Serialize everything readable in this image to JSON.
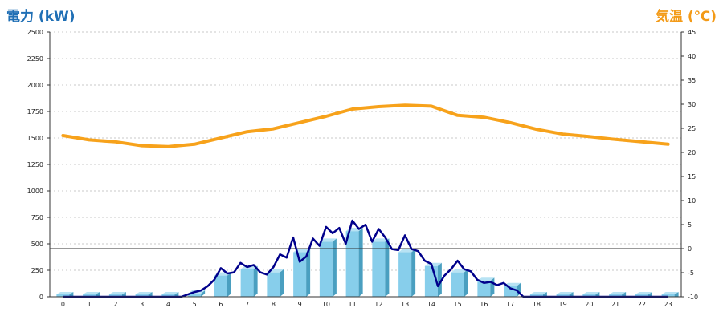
{
  "chart_data": {
    "type": "bar",
    "title": "",
    "y_left_label": "電力 (kW)",
    "y_right_label": "気温 (℃)",
    "categories": [
      "0",
      "1",
      "2",
      "3",
      "4",
      "5",
      "6",
      "7",
      "8",
      "9",
      "10",
      "11",
      "12",
      "13",
      "14",
      "15",
      "16",
      "17",
      "18",
      "19",
      "20",
      "21",
      "22",
      "23"
    ],
    "y_left_ticks": [
      0,
      250,
      500,
      750,
      1000,
      1250,
      1500,
      1750,
      2000,
      2250,
      2500
    ],
    "y_right_ticks": [
      -10,
      -5,
      0,
      5,
      10,
      15,
      20,
      25,
      30,
      35,
      40,
      45
    ],
    "ylim_left": [
      0,
      2500
    ],
    "ylim_right": [
      -10,
      45
    ],
    "grid": true,
    "reference_line_right": 0,
    "colors": {
      "bars": "#87ceeb",
      "bar_side": "#4a9fc0",
      "power_line": "#00008b",
      "temp_line": "#f7a21b",
      "left_title": "#1f6fb5",
      "right_title": "#f39a17"
    },
    "series": [
      {
        "type": "bar",
        "axis": "left",
        "values": [
          0,
          0,
          0,
          0,
          0,
          30,
          200,
          260,
          230,
          420,
          520,
          620,
          520,
          420,
          290,
          230,
          150,
          100,
          0,
          0,
          0,
          0,
          0,
          0
        ]
      },
      {
        "type": "line",
        "axis": "left",
        "x": [
          0,
          1,
          2,
          3,
          4,
          4.5,
          5,
          5.25,
          5.5,
          5.75,
          6,
          6.25,
          6.5,
          6.75,
          7,
          7.25,
          7.5,
          7.75,
          8,
          8.25,
          8.5,
          8.75,
          9,
          9.25,
          9.5,
          9.75,
          10,
          10.25,
          10.5,
          10.75,
          11,
          11.25,
          11.5,
          11.75,
          12,
          12.25,
          12.5,
          12.75,
          13,
          13.25,
          13.5,
          13.75,
          14,
          14.25,
          14.5,
          14.75,
          15,
          15.25,
          15.5,
          15.75,
          16,
          16.25,
          16.5,
          16.75,
          17,
          17.25,
          17.5,
          18,
          19,
          20,
          21,
          22,
          23
        ],
        "values": [
          0,
          0,
          0,
          0,
          0,
          0,
          45,
          60,
          100,
          160,
          270,
          220,
          230,
          320,
          280,
          300,
          230,
          210,
          280,
          400,
          370,
          560,
          330,
          380,
          550,
          480,
          660,
          600,
          650,
          500,
          720,
          640,
          680,
          520,
          640,
          560,
          450,
          440,
          580,
          450,
          430,
          340,
          310,
          100,
          200,
          260,
          340,
          260,
          240,
          160,
          130,
          140,
          110,
          130,
          80,
          60,
          0,
          0,
          0,
          0,
          0,
          0,
          0
        ]
      },
      {
        "type": "line",
        "axis": "right",
        "x": [
          0,
          1,
          2,
          3,
          4,
          5,
          6,
          7,
          8,
          9,
          10,
          11,
          12,
          13,
          14,
          15,
          16,
          17,
          18,
          19,
          20,
          21,
          22,
          23
        ],
        "values": [
          23.5,
          22.6,
          22.2,
          21.4,
          21.2,
          21.7,
          23.0,
          24.3,
          24.9,
          26.2,
          27.5,
          29.0,
          29.5,
          29.8,
          29.6,
          27.7,
          27.3,
          26.2,
          24.8,
          23.8,
          23.3,
          22.7,
          22.2,
          21.7
        ]
      }
    ]
  }
}
